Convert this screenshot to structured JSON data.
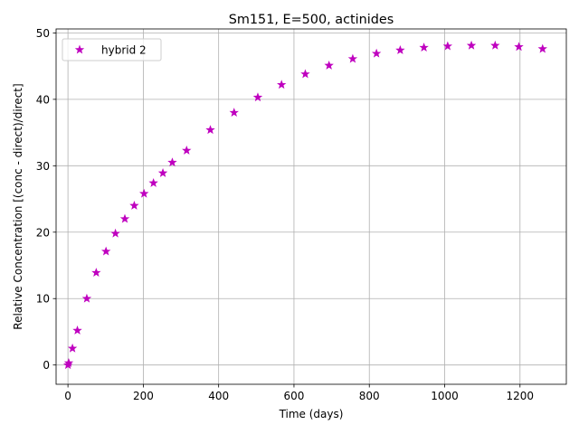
{
  "chart_data": {
    "type": "scatter",
    "title": "Sm151, E=500, actinides",
    "xlabel": "Time (days)",
    "ylabel": "Relative Concentration [(conc - direct)/direct]",
    "xlim": [
      -31.5,
      1323
    ],
    "ylim": [
      -2.9,
      50.6
    ],
    "xticks": [
      0,
      200,
      400,
      600,
      800,
      1000,
      1200
    ],
    "yticks": [
      0,
      10,
      20,
      30,
      40,
      50
    ],
    "grid": true,
    "legend_position": "top-left",
    "series": [
      {
        "name": "hybrid 2",
        "color": "#bf00bf",
        "marker": "star",
        "x": [
          0,
          2,
          12,
          25,
          50,
          75,
          101,
          126,
          151,
          176,
          202,
          227,
          252,
          277,
          315,
          378,
          441,
          504,
          567,
          630,
          693,
          756,
          819,
          882,
          945,
          1008,
          1071,
          1134,
          1197,
          1260
        ],
        "y": [
          0.0,
          0.3,
          2.5,
          5.2,
          10.0,
          13.9,
          17.1,
          19.8,
          22.0,
          24.0,
          25.8,
          27.4,
          28.9,
          30.5,
          32.3,
          35.4,
          38.0,
          40.3,
          42.2,
          43.8,
          45.1,
          46.1,
          46.9,
          47.4,
          47.8,
          48.0,
          48.1,
          48.1,
          47.9,
          47.6
        ]
      }
    ]
  }
}
